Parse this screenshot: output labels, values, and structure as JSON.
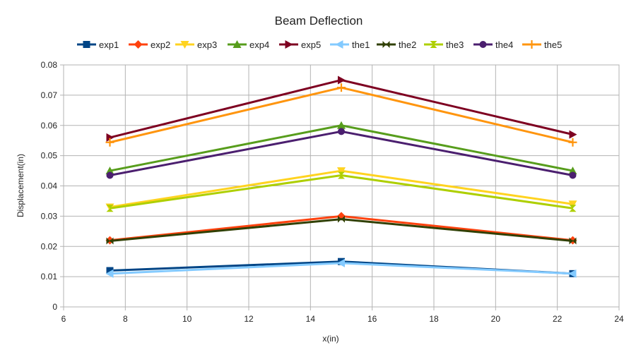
{
  "chart_data": {
    "type": "line",
    "title": "Beam Deflection",
    "xlabel": "x(in)",
    "ylabel": "Displacement(in)",
    "xlim": [
      6,
      24
    ],
    "ylim": [
      0,
      0.08
    ],
    "xticks": [
      6,
      8,
      10,
      12,
      14,
      16,
      18,
      20,
      22,
      24
    ],
    "yticks": [
      0,
      0.01,
      0.02,
      0.03,
      0.04,
      0.05,
      0.06,
      0.07,
      0.08
    ],
    "ytick_labels": [
      "0",
      "0.01",
      "0.02",
      "0.03",
      "0.04",
      "0.05",
      "0.06",
      "0.07",
      "0.08"
    ],
    "grid": true,
    "legend_position": "top",
    "x": [
      7.5,
      15,
      22.5
    ],
    "series": [
      {
        "name": "exp1",
        "color": "#004586",
        "marker": "square",
        "values": [
          0.012,
          0.015,
          0.011
        ]
      },
      {
        "name": "exp2",
        "color": "#ff420e",
        "marker": "diamond",
        "values": [
          0.022,
          0.03,
          0.022
        ]
      },
      {
        "name": "exp3",
        "color": "#ffd320",
        "marker": "triangle-down",
        "values": [
          0.033,
          0.045,
          0.034
        ]
      },
      {
        "name": "exp4",
        "color": "#579d1c",
        "marker": "triangle-up",
        "values": [
          0.045,
          0.06,
          0.045
        ]
      },
      {
        "name": "exp5",
        "color": "#7e0021",
        "marker": "triangle-right",
        "values": [
          0.056,
          0.075,
          0.057
        ]
      },
      {
        "name": "the1",
        "color": "#83caff",
        "marker": "triangle-left",
        "values": [
          0.011,
          0.0145,
          0.011
        ]
      },
      {
        "name": "the2",
        "color": "#314004",
        "marker": "bowtie",
        "values": [
          0.0218,
          0.029,
          0.0218
        ]
      },
      {
        "name": "the3",
        "color": "#aecf00",
        "marker": "hourglass",
        "values": [
          0.0326,
          0.0435,
          0.0326
        ]
      },
      {
        "name": "the4",
        "color": "#4b1f6f",
        "marker": "circle",
        "values": [
          0.0435,
          0.058,
          0.0435
        ]
      },
      {
        "name": "the5",
        "color": "#ff950e",
        "marker": "plus",
        "values": [
          0.0544,
          0.0725,
          0.0544
        ]
      }
    ]
  }
}
